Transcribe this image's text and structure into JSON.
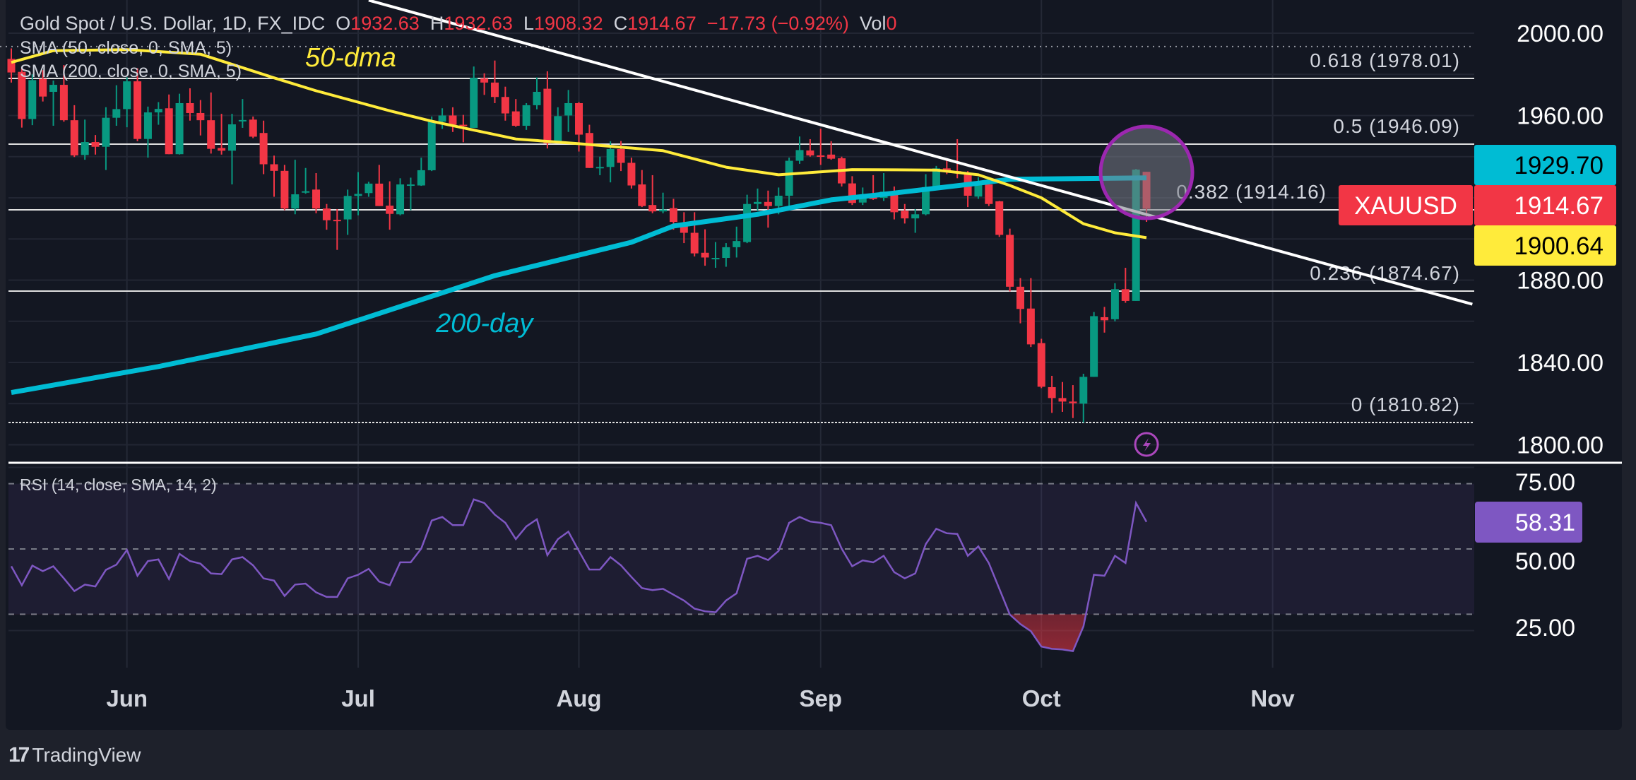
{
  "header": {
    "symbol_title": "Gold Spot / U.S. Dollar, 1D, FX_IDC",
    "o_label": "O",
    "o_value": "1932.63",
    "h_label": "H",
    "h_value": "1932.63",
    "l_label": "L",
    "l_value": "1908.32",
    "c_label": "C",
    "c_value": "1914.67",
    "change": "−17.73 (−0.92%)",
    "vol_label": "Vol",
    "vol_value": "0"
  },
  "indicators": {
    "sma50": "SMA (50, close, 0, SMA, 5)",
    "sma200": "SMA (200, close, 0, SMA, 5)",
    "rsi": "RSI (14, close, SMA, 14, 2)"
  },
  "annotations": {
    "sma50_note": "50-dma",
    "sma200_note": "200-day"
  },
  "footer": {
    "brand": "TradingView",
    "logo_text": "17"
  },
  "colors": {
    "background": "#131722",
    "up": "#089981",
    "down": "#f23645",
    "sma50": "#ffeb3b",
    "sma200": "#00bcd4",
    "rsi": "#7e57c2",
    "trendline": "#ffffff",
    "highlight_circle": "#9c27b0"
  },
  "chart_data": [
    {
      "type": "candlestick",
      "symbol": "XAUUSD",
      "ylim": [
        1790,
        2010
      ],
      "y_ticks": [
        "2000.00",
        "1960.00",
        "1880.00",
        "1840.00",
        "1800.00"
      ],
      "y_tick_values": [
        2000,
        1960,
        1880,
        1840,
        1800
      ],
      "x_ticks": [
        {
          "label": "Jun",
          "date": "2023-06-01"
        },
        {
          "label": "Jul",
          "date": "2023-07-03"
        },
        {
          "label": "Aug",
          "date": "2023-08-01"
        },
        {
          "label": "Sep",
          "date": "2023-09-01"
        },
        {
          "label": "Oct",
          "date": "2023-10-02"
        },
        {
          "label": "Nov",
          "date": "2023-11-01"
        }
      ],
      "grid": true,
      "dates": [
        "2023-05-17",
        "2023-05-18",
        "2023-05-19",
        "2023-05-22",
        "2023-05-23",
        "2023-05-24",
        "2023-05-25",
        "2023-05-26",
        "2023-05-29",
        "2023-05-30",
        "2023-05-31",
        "2023-06-01",
        "2023-06-02",
        "2023-06-05",
        "2023-06-06",
        "2023-06-07",
        "2023-06-08",
        "2023-06-09",
        "2023-06-12",
        "2023-06-13",
        "2023-06-14",
        "2023-06-15",
        "2023-06-16",
        "2023-06-19",
        "2023-06-20",
        "2023-06-21",
        "2023-06-22",
        "2023-06-23",
        "2023-06-26",
        "2023-06-27",
        "2023-06-28",
        "2023-06-29",
        "2023-06-30",
        "2023-07-03",
        "2023-07-04",
        "2023-07-05",
        "2023-07-06",
        "2023-07-07",
        "2023-07-10",
        "2023-07-11",
        "2023-07-12",
        "2023-07-13",
        "2023-07-14",
        "2023-07-17",
        "2023-07-18",
        "2023-07-19",
        "2023-07-20",
        "2023-07-21",
        "2023-07-24",
        "2023-07-25",
        "2023-07-26",
        "2023-07-27",
        "2023-07-28",
        "2023-07-31",
        "2023-08-01",
        "2023-08-02",
        "2023-08-03",
        "2023-08-04",
        "2023-08-07",
        "2023-08-08",
        "2023-08-09",
        "2023-08-10",
        "2023-08-11",
        "2023-08-14",
        "2023-08-15",
        "2023-08-16",
        "2023-08-17",
        "2023-08-18",
        "2023-08-21",
        "2023-08-22",
        "2023-08-23",
        "2023-08-24",
        "2023-08-25",
        "2023-08-28",
        "2023-08-29",
        "2023-08-30",
        "2023-08-31",
        "2023-09-01",
        "2023-09-04",
        "2023-09-05",
        "2023-09-06",
        "2023-09-07",
        "2023-09-08",
        "2023-09-11",
        "2023-09-12",
        "2023-09-13",
        "2023-09-14",
        "2023-09-15",
        "2023-09-18",
        "2023-09-19",
        "2023-09-20",
        "2023-09-21",
        "2023-09-22",
        "2023-09-25",
        "2023-09-26",
        "2023-09-27",
        "2023-09-28",
        "2023-09-29",
        "2023-10-02",
        "2023-10-03",
        "2023-10-04",
        "2023-10-05",
        "2023-10-06",
        "2023-10-09",
        "2023-10-10",
        "2023-10-11",
        "2023-10-12",
        "2023-10-13",
        "2023-10-16"
      ],
      "ohlc": [
        [
          1987.5,
          1992.6,
          1976.0,
          1980.9
        ],
        [
          1981.2,
          1983.5,
          1954.1,
          1958.3
        ],
        [
          1958.3,
          1980.0,
          1955.3,
          1977.2
        ],
        [
          1977.8,
          1982.0,
          1966.8,
          1969.2
        ],
        [
          1971.5,
          1977.0,
          1955.0,
          1974.9
        ],
        [
          1974.9,
          1984.5,
          1957.0,
          1957.7
        ],
        [
          1957.7,
          1965.0,
          1939.8,
          1940.6
        ],
        [
          1940.8,
          1958.0,
          1938.5,
          1947.1
        ],
        [
          1947.1,
          1950.5,
          1941.0,
          1944.8
        ],
        [
          1944.8,
          1964.0,
          1933.5,
          1958.9
        ],
        [
          1958.9,
          1974.7,
          1955.0,
          1963.1
        ],
        [
          1963.1,
          1978.6,
          1954.3,
          1976.6
        ],
        [
          1976.6,
          1983.0,
          1947.5,
          1948.6
        ],
        [
          1948.6,
          1964.3,
          1939.5,
          1961.5
        ],
        [
          1961.5,
          1966.5,
          1955.5,
          1963.2
        ],
        [
          1963.5,
          1970.2,
          1941.2,
          1941.2
        ],
        [
          1941.2,
          1970.6,
          1941.0,
          1966.0
        ],
        [
          1966.0,
          1973.2,
          1957.5,
          1961.2
        ],
        [
          1961.2,
          1967.5,
          1950.3,
          1957.7
        ],
        [
          1957.7,
          1971.2,
          1941.5,
          1943.8
        ],
        [
          1944.2,
          1960.8,
          1941.0,
          1942.9
        ],
        [
          1942.9,
          1960.8,
          1926.5,
          1955.7
        ],
        [
          1957.5,
          1968.0,
          1954.0,
          1957.8
        ],
        [
          1958.0,
          1959.5,
          1949.0,
          1949.7
        ],
        [
          1951.5,
          1957.5,
          1931.5,
          1936.3
        ],
        [
          1936.3,
          1940.5,
          1920.5,
          1933.1
        ],
        [
          1933.1,
          1936.0,
          1914.0,
          1914.8
        ],
        [
          1914.8,
          1938.5,
          1912.0,
          1921.7
        ],
        [
          1922.5,
          1934.5,
          1922.0,
          1923.2
        ],
        [
          1924.0,
          1932.0,
          1912.5,
          1914.8
        ],
        [
          1914.8,
          1917.0,
          1904.5,
          1909.1
        ],
        [
          1909.3,
          1914.5,
          1894.7,
          1909.1
        ],
        [
          1909.5,
          1924.0,
          1902.0,
          1920.9
        ],
        [
          1920.9,
          1932.5,
          1911.5,
          1921.9
        ],
        [
          1922.3,
          1927.8,
          1920.5,
          1926.9
        ],
        [
          1926.9,
          1936.0,
          1916.0,
          1916.0
        ],
        [
          1916.2,
          1928.0,
          1904.5,
          1912.2
        ],
        [
          1912.0,
          1929.5,
          1911.5,
          1926.5
        ],
        [
          1926.5,
          1929.8,
          1914.0,
          1926.5
        ],
        [
          1926.0,
          1939.5,
          1925.8,
          1933.4
        ],
        [
          1933.4,
          1959.5,
          1933.0,
          1957.0
        ],
        [
          1957.0,
          1963.5,
          1953.5,
          1960.0
        ],
        [
          1960.0,
          1964.0,
          1952.0,
          1955.5
        ],
        [
          1955.5,
          1960.3,
          1947.0,
          1955.0
        ],
        [
          1954.0,
          1983.8,
          1954.0,
          1978.3
        ],
        [
          1978.0,
          1980.5,
          1970.0,
          1976.0
        ],
        [
          1976.0,
          1986.7,
          1966.0,
          1969.0
        ],
        [
          1969.0,
          1974.0,
          1957.5,
          1961.0
        ],
        [
          1962.0,
          1968.0,
          1954.5,
          1955.0
        ],
        [
          1955.0,
          1966.0,
          1953.0,
          1965.0
        ],
        [
          1965.0,
          1978.5,
          1963.0,
          1971.5
        ],
        [
          1973.0,
          1981.5,
          1944.0,
          1946.5
        ],
        [
          1947.0,
          1964.0,
          1946.5,
          1959.7
        ],
        [
          1960.0,
          1972.4,
          1952.0,
          1966.0
        ],
        [
          1966.0,
          1966.5,
          1942.5,
          1950.7
        ],
        [
          1951.5,
          1955.5,
          1934.5,
          1934.5
        ],
        [
          1935.0,
          1940.0,
          1931.0,
          1935.0
        ],
        [
          1935.0,
          1947.5,
          1927.5,
          1943.7
        ],
        [
          1943.7,
          1947.6,
          1933.0,
          1937.0
        ],
        [
          1937.0,
          1939.5,
          1924.5,
          1926.0
        ],
        [
          1926.5,
          1933.5,
          1915.5,
          1916.0
        ],
        [
          1916.5,
          1931.0,
          1912.5,
          1913.4
        ],
        [
          1913.4,
          1922.5,
          1912.5,
          1914.3
        ],
        [
          1915.0,
          1919.5,
          1904.5,
          1908.3
        ],
        [
          1908.0,
          1913.0,
          1898.0,
          1903.0
        ],
        [
          1903.0,
          1913.0,
          1891.5,
          1893.0
        ],
        [
          1893.3,
          1904.7,
          1887.0,
          1891.0
        ],
        [
          1890.8,
          1898.5,
          1886.0,
          1890.8
        ],
        [
          1890.8,
          1898.0,
          1886.5,
          1896.0
        ],
        [
          1896.0,
          1906.0,
          1891.0,
          1899.0
        ],
        [
          1898.5,
          1921.5,
          1898.0,
          1917.0
        ],
        [
          1917.0,
          1924.5,
          1913.5,
          1918.0
        ],
        [
          1918.0,
          1923.5,
          1905.5,
          1916.0
        ],
        [
          1916.0,
          1925.0,
          1912.0,
          1921.0
        ],
        [
          1921.0,
          1939.5,
          1914.5,
          1938.0
        ],
        [
          1938.0,
          1949.8,
          1936.5,
          1943.2
        ],
        [
          1943.0,
          1948.5,
          1940.0,
          1940.6
        ],
        [
          1940.6,
          1953.6,
          1936.0,
          1940.5
        ],
        [
          1941.0,
          1947.5,
          1938.5,
          1939.0
        ],
        [
          1939.2,
          1940.0,
          1925.5,
          1927.0
        ],
        [
          1927.0,
          1930.5,
          1916.5,
          1917.5
        ],
        [
          1917.7,
          1925.0,
          1916.5,
          1921.0
        ],
        [
          1921.0,
          1931.0,
          1919.0,
          1919.4
        ],
        [
          1920.0,
          1932.0,
          1918.5,
          1923.0
        ],
        [
          1923.0,
          1925.5,
          1909.5,
          1913.0
        ],
        [
          1913.7,
          1917.0,
          1907.5,
          1910.0
        ],
        [
          1910.0,
          1914.5,
          1903.0,
          1912.0
        ],
        [
          1912.0,
          1931.5,
          1911.5,
          1925.2
        ],
        [
          1925.0,
          1935.5,
          1924.0,
          1934.3
        ],
        [
          1934.3,
          1938.5,
          1931.5,
          1932.6
        ],
        [
          1933.0,
          1948.5,
          1929.5,
          1932.0
        ],
        [
          1932.0,
          1933.0,
          1915.5,
          1921.0
        ],
        [
          1920.6,
          1930.0,
          1919.5,
          1926.3
        ],
        [
          1926.5,
          1928.5,
          1916.0,
          1917.0
        ],
        [
          1918.3,
          1918.5,
          1901.0,
          1902.0
        ],
        [
          1902.0,
          1905.0,
          1874.5,
          1876.8
        ],
        [
          1876.8,
          1881.0,
          1859.0,
          1866.0
        ],
        [
          1866.2,
          1881.0,
          1847.5,
          1848.8
        ],
        [
          1849.4,
          1851.5,
          1827.5,
          1828.2
        ],
        [
          1828.0,
          1833.5,
          1815.5,
          1822.7
        ],
        [
          1822.7,
          1830.5,
          1816.0,
          1821.0
        ],
        [
          1821.0,
          1829.0,
          1813.0,
          1820.2
        ],
        [
          1820.0,
          1834.5,
          1810.8,
          1833.0
        ],
        [
          1833.0,
          1864.5,
          1833.0,
          1862.5
        ],
        [
          1862.0,
          1867.0,
          1854.5,
          1860.5
        ],
        [
          1861.0,
          1878.5,
          1860.0,
          1875.6
        ],
        [
          1875.6,
          1886.0,
          1869.0,
          1869.9
        ],
        [
          1869.9,
          1934.0,
          1869.9,
          1933.7
        ],
        [
          1932.63,
          1932.63,
          1908.32,
          1914.67
        ]
      ],
      "sma50": [
        [
          "2023-05-17",
          1985.8
        ],
        [
          "2023-05-23",
          1991.5
        ],
        [
          "2023-06-01",
          1992.0
        ],
        [
          "2023-06-12",
          1989.8
        ],
        [
          "2023-06-21",
          1978.3
        ],
        [
          "2023-06-27",
          1972.0
        ],
        [
          "2023-07-06",
          1962.3
        ],
        [
          "2023-07-12",
          1957.2
        ],
        [
          "2023-07-24",
          1948.6
        ],
        [
          "2023-08-01",
          1946.3
        ],
        [
          "2023-08-11",
          1942.9
        ],
        [
          "2023-08-21",
          1934.9
        ],
        [
          "2023-08-28",
          1931.2
        ],
        [
          "2023-09-06",
          1933.7
        ],
        [
          "2023-09-18",
          1933.5
        ],
        [
          "2023-09-22",
          1931.2
        ],
        [
          "2023-09-27",
          1926.0
        ],
        [
          "2023-10-02",
          1920.0
        ],
        [
          "2023-10-06",
          1907.4
        ],
        [
          "2023-10-11",
          1903.0
        ],
        [
          "2023-10-16",
          1900.64
        ]
      ],
      "sma200": [
        [
          "2023-05-17",
          1825.4
        ],
        [
          "2023-06-06",
          1838.0
        ],
        [
          "2023-06-27",
          1853.8
        ],
        [
          "2023-07-20",
          1882.2
        ],
        [
          "2023-08-08",
          1898.4
        ],
        [
          "2023-08-14",
          1906.3
        ],
        [
          "2023-08-24",
          1912.0
        ],
        [
          "2023-09-04",
          1919.0
        ],
        [
          "2023-09-11",
          1921.7
        ],
        [
          "2023-09-22",
          1927.1
        ],
        [
          "2023-09-27",
          1929.0
        ],
        [
          "2023-10-16",
          1929.7
        ]
      ],
      "trendline": [
        [
          "2023-07-04",
          2016.0
        ],
        [
          "2023-11-28",
          1868.3
        ]
      ],
      "dotted_level": 1993.5,
      "fib_levels": [
        {
          "label": "0.618 (1978.01)",
          "price": 1978.01,
          "style": "solid"
        },
        {
          "label": "0.5 (1946.09)",
          "price": 1946.09,
          "style": "solid"
        },
        {
          "label": "0.382 (1914.16)",
          "price": 1914.16,
          "style": "solid"
        },
        {
          "label": "0.236 (1874.67)",
          "price": 1874.67,
          "style": "solid"
        },
        {
          "label": "0 (1810.82)",
          "price": 1810.82,
          "style": "dotted"
        }
      ],
      "price_tags": [
        {
          "label": "1929.70",
          "price": 1929.7,
          "color": "#00bcd4",
          "text_color": "#000000"
        },
        {
          "label": "1914.67",
          "price": 1914.67,
          "color": "#f23645",
          "text_color": "#ffffff",
          "symbol": "XAUUSD"
        },
        {
          "label": "1900.64",
          "price": 1900.64,
          "color": "#ffeb3b",
          "text_color": "#000000"
        }
      ],
      "highlight": {
        "date": "2023-10-16",
        "price": 1924
      }
    },
    {
      "type": "line",
      "name": "RSI (14, close, SMA, 14, 2)",
      "ylim": [
        12,
        80
      ],
      "y_ticks": [
        "75.00",
        "50.00",
        "25.00"
      ],
      "y_tick_values": [
        75,
        50,
        25
      ],
      "bands": [
        70,
        50,
        30
      ],
      "current_label": "58.31",
      "values": [
        44.7,
        38.9,
        44.9,
        43.2,
        44.7,
        41.0,
        37.1,
        39.1,
        38.5,
        43.6,
        45.2,
        49.7,
        41.8,
        46.3,
        46.8,
        40.8,
        48.5,
        46.3,
        45.5,
        42.5,
        42.3,
        46.8,
        47.5,
        45.0,
        41.0,
        40.3,
        35.6,
        39.1,
        39.4,
        36.7,
        35.3,
        35.3,
        41.0,
        42.1,
        43.9,
        40.0,
        38.9,
        45.9,
        45.9,
        50.1,
        58.7,
        59.8,
        57.3,
        57.3,
        65.2,
        64.1,
        60.5,
        58.0,
        53.0,
        56.9,
        59.1,
        48.1,
        53.0,
        55.3,
        49.4,
        43.7,
        43.7,
        47.5,
        45.0,
        41.4,
        38.0,
        37.4,
        37.8,
        36.0,
        34.2,
        31.7,
        30.9,
        30.6,
        34.2,
        36.4,
        47.0,
        47.9,
        46.6,
        49.4,
        58.0,
        59.8,
        58.4,
        58.0,
        57.3,
        50.1,
        44.7,
        46.5,
        45.9,
        47.9,
        42.9,
        41.0,
        42.5,
        51.5,
        56.2,
        54.8,
        54.6,
        47.9,
        50.8,
        45.7,
        37.8,
        29.9,
        27.0,
        24.8,
        20.1,
        19.4,
        19.2,
        18.7,
        26.3,
        42.1,
        41.8,
        47.9,
        45.7,
        64.1,
        58.31
      ]
    }
  ]
}
